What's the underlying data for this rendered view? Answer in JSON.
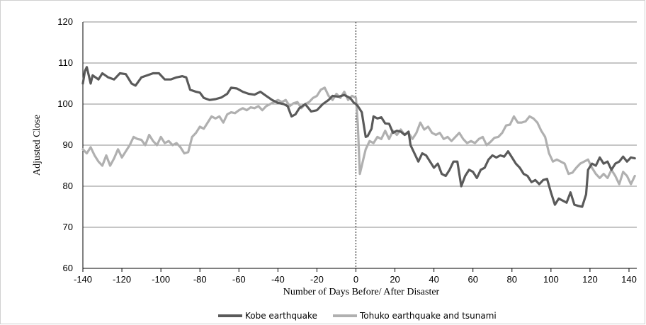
{
  "chart_data": {
    "type": "line",
    "xlabel": "Number of Days Before/ After Disaster",
    "ylabel": "Adjusted Close",
    "xlim": [
      -140,
      144
    ],
    "ylim": [
      60,
      120
    ],
    "x_ticks": [
      -140,
      -120,
      -100,
      -80,
      -60,
      -40,
      -20,
      0,
      20,
      40,
      60,
      80,
      100,
      120,
      140
    ],
    "y_ticks": [
      60,
      70,
      80,
      90,
      100,
      110,
      120
    ],
    "grid": "horizontal",
    "legend_position": "bottom",
    "event_marker_x": 0,
    "series": [
      {
        "name": "Kobe earthquake",
        "color": "#5a5a5a",
        "points": [
          [
            -140,
            105
          ],
          [
            -139,
            108
          ],
          [
            -138,
            109
          ],
          [
            -137,
            107
          ],
          [
            -136,
            105
          ],
          [
            -135,
            107
          ],
          [
            -132,
            106
          ],
          [
            -130,
            107.5
          ],
          [
            -127,
            106.5
          ],
          [
            -124,
            106
          ],
          [
            -121,
            107.5
          ],
          [
            -118,
            107.3
          ],
          [
            -115,
            105
          ],
          [
            -113,
            104.5
          ],
          [
            -110,
            106.5
          ],
          [
            -107,
            107
          ],
          [
            -104,
            107.5
          ],
          [
            -101,
            107.5
          ],
          [
            -98,
            106
          ],
          [
            -95,
            106
          ],
          [
            -92,
            106.5
          ],
          [
            -89,
            106.8
          ],
          [
            -87,
            106.5
          ],
          [
            -85,
            103.5
          ],
          [
            -82,
            103
          ],
          [
            -80,
            102.8
          ],
          [
            -78,
            101.5
          ],
          [
            -75,
            101
          ],
          [
            -72,
            101.2
          ],
          [
            -69,
            101.6
          ],
          [
            -66,
            102.5
          ],
          [
            -64,
            104
          ],
          [
            -61,
            103.8
          ],
          [
            -58,
            103
          ],
          [
            -55,
            102.5
          ],
          [
            -52,
            102.3
          ],
          [
            -49,
            103
          ],
          [
            -46,
            102
          ],
          [
            -43,
            101
          ],
          [
            -40,
            100.3
          ],
          [
            -37,
            100
          ],
          [
            -35,
            99.5
          ],
          [
            -33,
            97
          ],
          [
            -31,
            97.5
          ],
          [
            -29,
            99
          ],
          [
            -26,
            100
          ],
          [
            -23,
            98.2
          ],
          [
            -20,
            98.5
          ],
          [
            -17,
            100
          ],
          [
            -14,
            101
          ],
          [
            -12,
            102
          ],
          [
            -9,
            101.8
          ],
          [
            -6,
            102.2
          ],
          [
            -3,
            101.5
          ],
          [
            -1,
            100.3
          ],
          [
            0,
            100
          ],
          [
            1,
            99.5
          ],
          [
            3,
            98
          ],
          [
            4,
            95
          ],
          [
            5,
            92
          ],
          [
            6,
            92.2
          ],
          [
            8,
            94
          ],
          [
            9,
            97
          ],
          [
            11,
            96.5
          ],
          [
            13,
            96.8
          ],
          [
            15,
            95.3
          ],
          [
            17,
            95.2
          ],
          [
            19,
            93
          ],
          [
            21,
            93.5
          ],
          [
            23,
            93.3
          ],
          [
            25,
            92.5
          ],
          [
            27,
            93.3
          ],
          [
            28,
            90
          ],
          [
            30,
            88
          ],
          [
            32,
            86
          ],
          [
            34,
            88
          ],
          [
            36,
            87.5
          ],
          [
            38,
            86
          ],
          [
            40,
            84.5
          ],
          [
            42,
            85.5
          ],
          [
            44,
            83
          ],
          [
            46,
            82.5
          ],
          [
            48,
            84
          ],
          [
            50,
            86
          ],
          [
            52,
            86
          ],
          [
            54,
            80
          ],
          [
            56,
            82.5
          ],
          [
            58,
            84
          ],
          [
            60,
            83.5
          ],
          [
            62,
            82
          ],
          [
            64,
            84
          ],
          [
            66,
            84.5
          ],
          [
            68,
            86.5
          ],
          [
            70,
            87.5
          ],
          [
            72,
            87
          ],
          [
            74,
            87.5
          ],
          [
            76,
            87.2
          ],
          [
            78,
            88.5
          ],
          [
            80,
            87
          ],
          [
            82,
            85.5
          ],
          [
            84,
            84.5
          ],
          [
            86,
            83
          ],
          [
            88,
            82.5
          ],
          [
            90,
            81
          ],
          [
            92,
            81.5
          ],
          [
            94,
            80.5
          ],
          [
            96,
            81.5
          ],
          [
            98,
            81.8
          ],
          [
            100,
            78.5
          ],
          [
            102,
            75.5
          ],
          [
            104,
            77
          ],
          [
            106,
            76.5
          ],
          [
            108,
            76
          ],
          [
            110,
            78.5
          ],
          [
            112,
            75.5
          ],
          [
            114,
            75.2
          ],
          [
            116,
            75
          ],
          [
            118,
            78
          ],
          [
            119,
            84
          ],
          [
            121,
            85.5
          ],
          [
            123,
            85
          ],
          [
            125,
            87
          ],
          [
            127,
            85.5
          ],
          [
            129,
            86
          ],
          [
            131,
            84
          ],
          [
            133,
            85.5
          ],
          [
            135,
            86
          ],
          [
            137,
            87.2
          ],
          [
            139,
            86
          ],
          [
            141,
            87
          ],
          [
            143,
            86.8
          ]
        ]
      },
      {
        "name": "Tohuko earthquake and tsunami",
        "color": "#b0b0b0",
        "points": [
          [
            -140,
            89
          ],
          [
            -138,
            88
          ],
          [
            -136,
            89.5
          ],
          [
            -134,
            87.5
          ],
          [
            -132,
            86
          ],
          [
            -130,
            85
          ],
          [
            -128,
            87.5
          ],
          [
            -126,
            85
          ],
          [
            -124,
            86.8
          ],
          [
            -122,
            89
          ],
          [
            -120,
            87
          ],
          [
            -118,
            88.5
          ],
          [
            -116,
            90
          ],
          [
            -114,
            92
          ],
          [
            -112,
            91.5
          ],
          [
            -110,
            91.3
          ],
          [
            -108,
            90
          ],
          [
            -106,
            92.5
          ],
          [
            -104,
            91
          ],
          [
            -102,
            90
          ],
          [
            -100,
            92
          ],
          [
            -98,
            90.5
          ],
          [
            -96,
            91
          ],
          [
            -94,
            90
          ],
          [
            -92,
            90.5
          ],
          [
            -90,
            89.5
          ],
          [
            -88,
            88
          ],
          [
            -86,
            88.3
          ],
          [
            -84,
            92
          ],
          [
            -82,
            93
          ],
          [
            -80,
            94.5
          ],
          [
            -78,
            94
          ],
          [
            -76,
            95.5
          ],
          [
            -74,
            97
          ],
          [
            -72,
            96.5
          ],
          [
            -70,
            97
          ],
          [
            -68,
            95.5
          ],
          [
            -66,
            97.5
          ],
          [
            -64,
            98
          ],
          [
            -62,
            97.8
          ],
          [
            -60,
            98.5
          ],
          [
            -58,
            99
          ],
          [
            -56,
            98.5
          ],
          [
            -54,
            99.2
          ],
          [
            -52,
            99
          ],
          [
            -50,
            99.5
          ],
          [
            -48,
            98.5
          ],
          [
            -46,
            99.5
          ],
          [
            -44,
            100
          ],
          [
            -42,
            100.5
          ],
          [
            -40,
            101
          ],
          [
            -38,
            100.5
          ],
          [
            -36,
            101
          ],
          [
            -34,
            99.5
          ],
          [
            -32,
            100.2
          ],
          [
            -30,
            100.5
          ],
          [
            -28,
            99
          ],
          [
            -26,
            100
          ],
          [
            -24,
            100.5
          ],
          [
            -22,
            101.5
          ],
          [
            -20,
            102
          ],
          [
            -18,
            103.5
          ],
          [
            -16,
            104
          ],
          [
            -14,
            102
          ],
          [
            -12,
            101
          ],
          [
            -10,
            102.5
          ],
          [
            -8,
            101.5
          ],
          [
            -6,
            103
          ],
          [
            -4,
            101
          ],
          [
            -2,
            102
          ],
          [
            0,
            101.5
          ],
          [
            1,
            95
          ],
          [
            2,
            83
          ],
          [
            3,
            85
          ],
          [
            4,
            87
          ],
          [
            5,
            89
          ],
          [
            7,
            91
          ],
          [
            9,
            90.5
          ],
          [
            11,
            92
          ],
          [
            13,
            91.5
          ],
          [
            15,
            93.5
          ],
          [
            17,
            91.5
          ],
          [
            19,
            93.5
          ],
          [
            21,
            92.5
          ],
          [
            23,
            93.8
          ],
          [
            25,
            92.5
          ],
          [
            27,
            93
          ],
          [
            29,
            91.5
          ],
          [
            31,
            93
          ],
          [
            33,
            95.5
          ],
          [
            35,
            93.8
          ],
          [
            37,
            94.5
          ],
          [
            39,
            93
          ],
          [
            41,
            92.5
          ],
          [
            43,
            93
          ],
          [
            45,
            91.5
          ],
          [
            47,
            92
          ],
          [
            49,
            91
          ],
          [
            51,
            92
          ],
          [
            53,
            93
          ],
          [
            55,
            91.5
          ],
          [
            57,
            90.5
          ],
          [
            59,
            91
          ],
          [
            61,
            90.5
          ],
          [
            63,
            91.5
          ],
          [
            65,
            92
          ],
          [
            67,
            90
          ],
          [
            69,
            90.8
          ],
          [
            71,
            91.8
          ],
          [
            73,
            92
          ],
          [
            75,
            93
          ],
          [
            77,
            94.8
          ],
          [
            79,
            95
          ],
          [
            81,
            97
          ],
          [
            83,
            95.5
          ],
          [
            85,
            95.5
          ],
          [
            87,
            95.8
          ],
          [
            89,
            97
          ],
          [
            91,
            96.5
          ],
          [
            93,
            95.5
          ],
          [
            95,
            93.5
          ],
          [
            97,
            92
          ],
          [
            99,
            88
          ],
          [
            101,
            86
          ],
          [
            103,
            86.5
          ],
          [
            105,
            86
          ],
          [
            107,
            85.5
          ],
          [
            109,
            83
          ],
          [
            111,
            83.3
          ],
          [
            113,
            84.5
          ],
          [
            115,
            85.5
          ],
          [
            117,
            86
          ],
          [
            119,
            86.5
          ],
          [
            121,
            84.5
          ],
          [
            123,
            83
          ],
          [
            125,
            82
          ],
          [
            127,
            83
          ],
          [
            129,
            82
          ],
          [
            131,
            84
          ],
          [
            133,
            82.5
          ],
          [
            135,
            80.5
          ],
          [
            137,
            83.5
          ],
          [
            139,
            82.5
          ],
          [
            141,
            80.5
          ],
          [
            143,
            82.5
          ]
        ]
      }
    ]
  }
}
